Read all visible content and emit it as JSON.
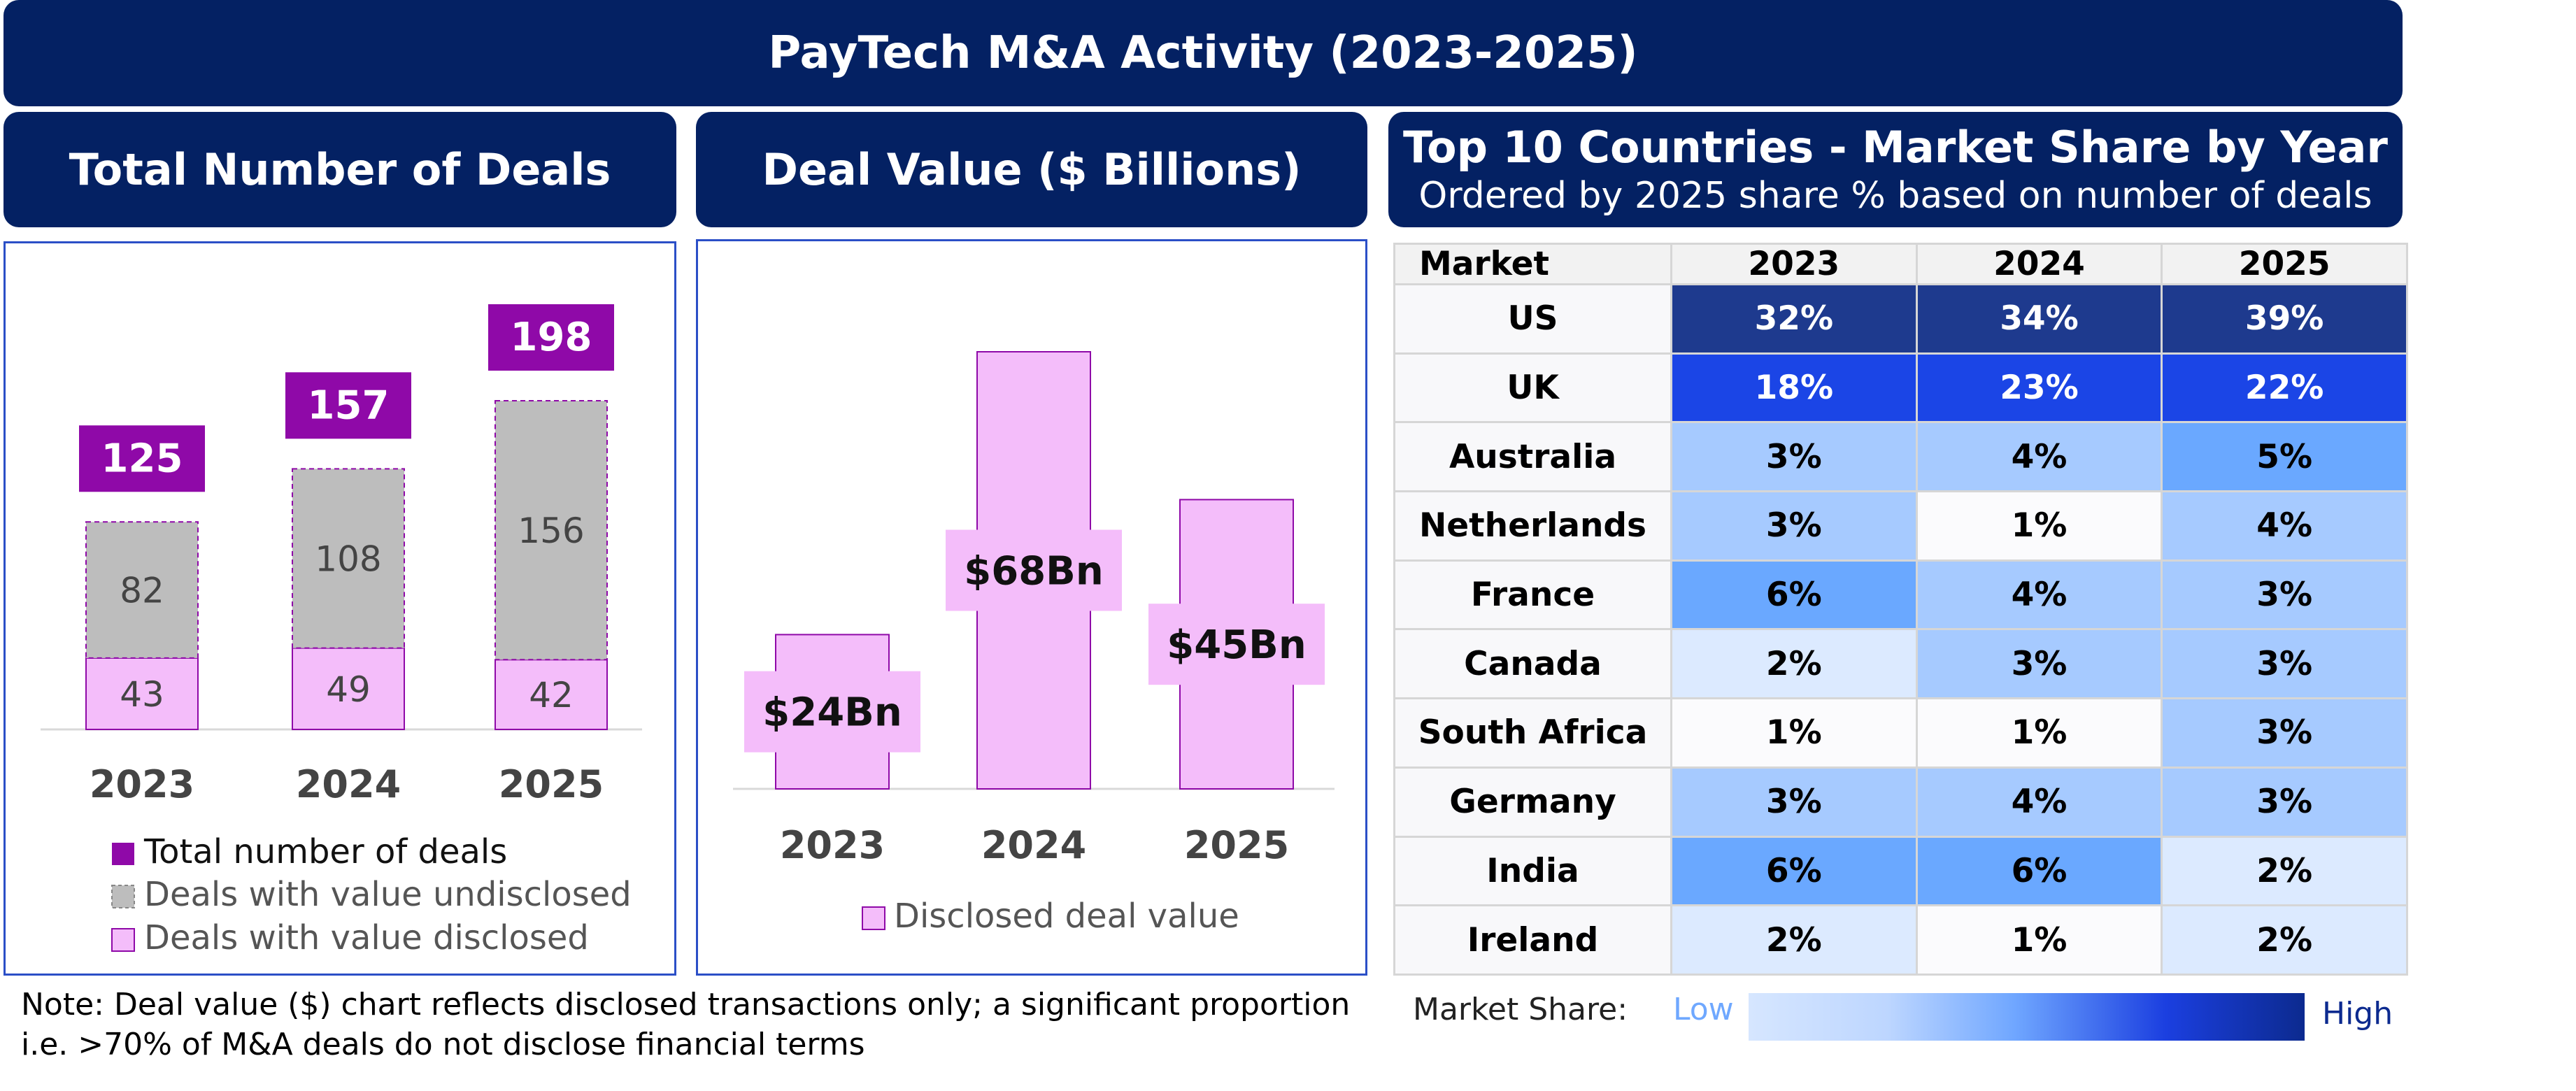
{
  "title": "PayTech M&A Activity (2023-2025)",
  "panels": {
    "deals_title": "Total Number of Deals",
    "value_title": "Deal Value ($ Billions)",
    "share_title": "Top 10 Countries - Market Share by Year",
    "share_subtitle": "Ordered by 2025 share % based on number of deals"
  },
  "chart_data": [
    {
      "type": "bar",
      "title": "Total Number of Deals",
      "categories": [
        "2023",
        "2024",
        "2025"
      ],
      "series": [
        {
          "name": "Deals with value disclosed",
          "values": [
            43,
            49,
            42
          ],
          "color": "#f4bdfa"
        },
        {
          "name": "Deals with value undisclosed",
          "values": [
            82,
            108,
            156
          ],
          "color": "#bdbdbd"
        }
      ],
      "totals": {
        "name": "Total number of deals",
        "values": [
          125,
          157,
          198
        ],
        "color": "#8f09a8"
      },
      "ylim": [
        0,
        215
      ]
    },
    {
      "type": "bar",
      "title": "Deal Value ($ Billions)",
      "categories": [
        "2023",
        "2024",
        "2025"
      ],
      "series": [
        {
          "name": "Disclosed deal value",
          "values": [
            24,
            68,
            45
          ],
          "labels": [
            "$24Bn",
            "$68Bn",
            "$45Bn"
          ],
          "color": "#f4bdfa"
        }
      ],
      "ylim": [
        0,
        75
      ]
    },
    {
      "type": "table",
      "title": "Top 10 Countries - Market Share by Year",
      "columns": [
        "Market",
        "2023",
        "2024",
        "2025"
      ],
      "rows": [
        {
          "market": "US",
          "values": [
            32,
            34,
            39
          ],
          "labels": [
            "32%",
            "34%",
            "39%"
          ]
        },
        {
          "market": "UK",
          "values": [
            18,
            23,
            22
          ],
          "labels": [
            "18%",
            "23%",
            "22%"
          ]
        },
        {
          "market": "Australia",
          "values": [
            3,
            4,
            5
          ],
          "labels": [
            "3%",
            "4%",
            "5%"
          ]
        },
        {
          "market": "Netherlands",
          "values": [
            3,
            1,
            4
          ],
          "labels": [
            "3%",
            "1%",
            "4%"
          ]
        },
        {
          "market": "France",
          "values": [
            6,
            4,
            3
          ],
          "labels": [
            "6%",
            "4%",
            "3%"
          ]
        },
        {
          "market": "Canada",
          "values": [
            2,
            3,
            3
          ],
          "labels": [
            "2%",
            "3%",
            "3%"
          ]
        },
        {
          "market": "South Africa",
          "values": [
            1,
            1,
            3
          ],
          "labels": [
            "1%",
            "1%",
            "3%"
          ]
        },
        {
          "market": "Germany",
          "values": [
            3,
            4,
            3
          ],
          "labels": [
            "3%",
            "4%",
            "3%"
          ]
        },
        {
          "market": "India",
          "values": [
            6,
            6,
            2
          ],
          "labels": [
            "6%",
            "6%",
            "2%"
          ]
        },
        {
          "market": "Ireland",
          "values": [
            2,
            1,
            2
          ],
          "labels": [
            "2%",
            "1%",
            "2%"
          ]
        }
      ],
      "scale": {
        "label": "Market Share:",
        "low": "Low",
        "high": "High"
      }
    }
  ],
  "note": "Note: Deal value ($) chart reflects disclosed transactions only; a significant proportion i.e. >70% of M&A deals do not disclose financial terms",
  "colors": {
    "navy": "#042163",
    "purple": "#8f09a8",
    "pink": "#f4bdfa",
    "gray": "#bdbdbd",
    "border_blue": "#2b4fc7"
  }
}
